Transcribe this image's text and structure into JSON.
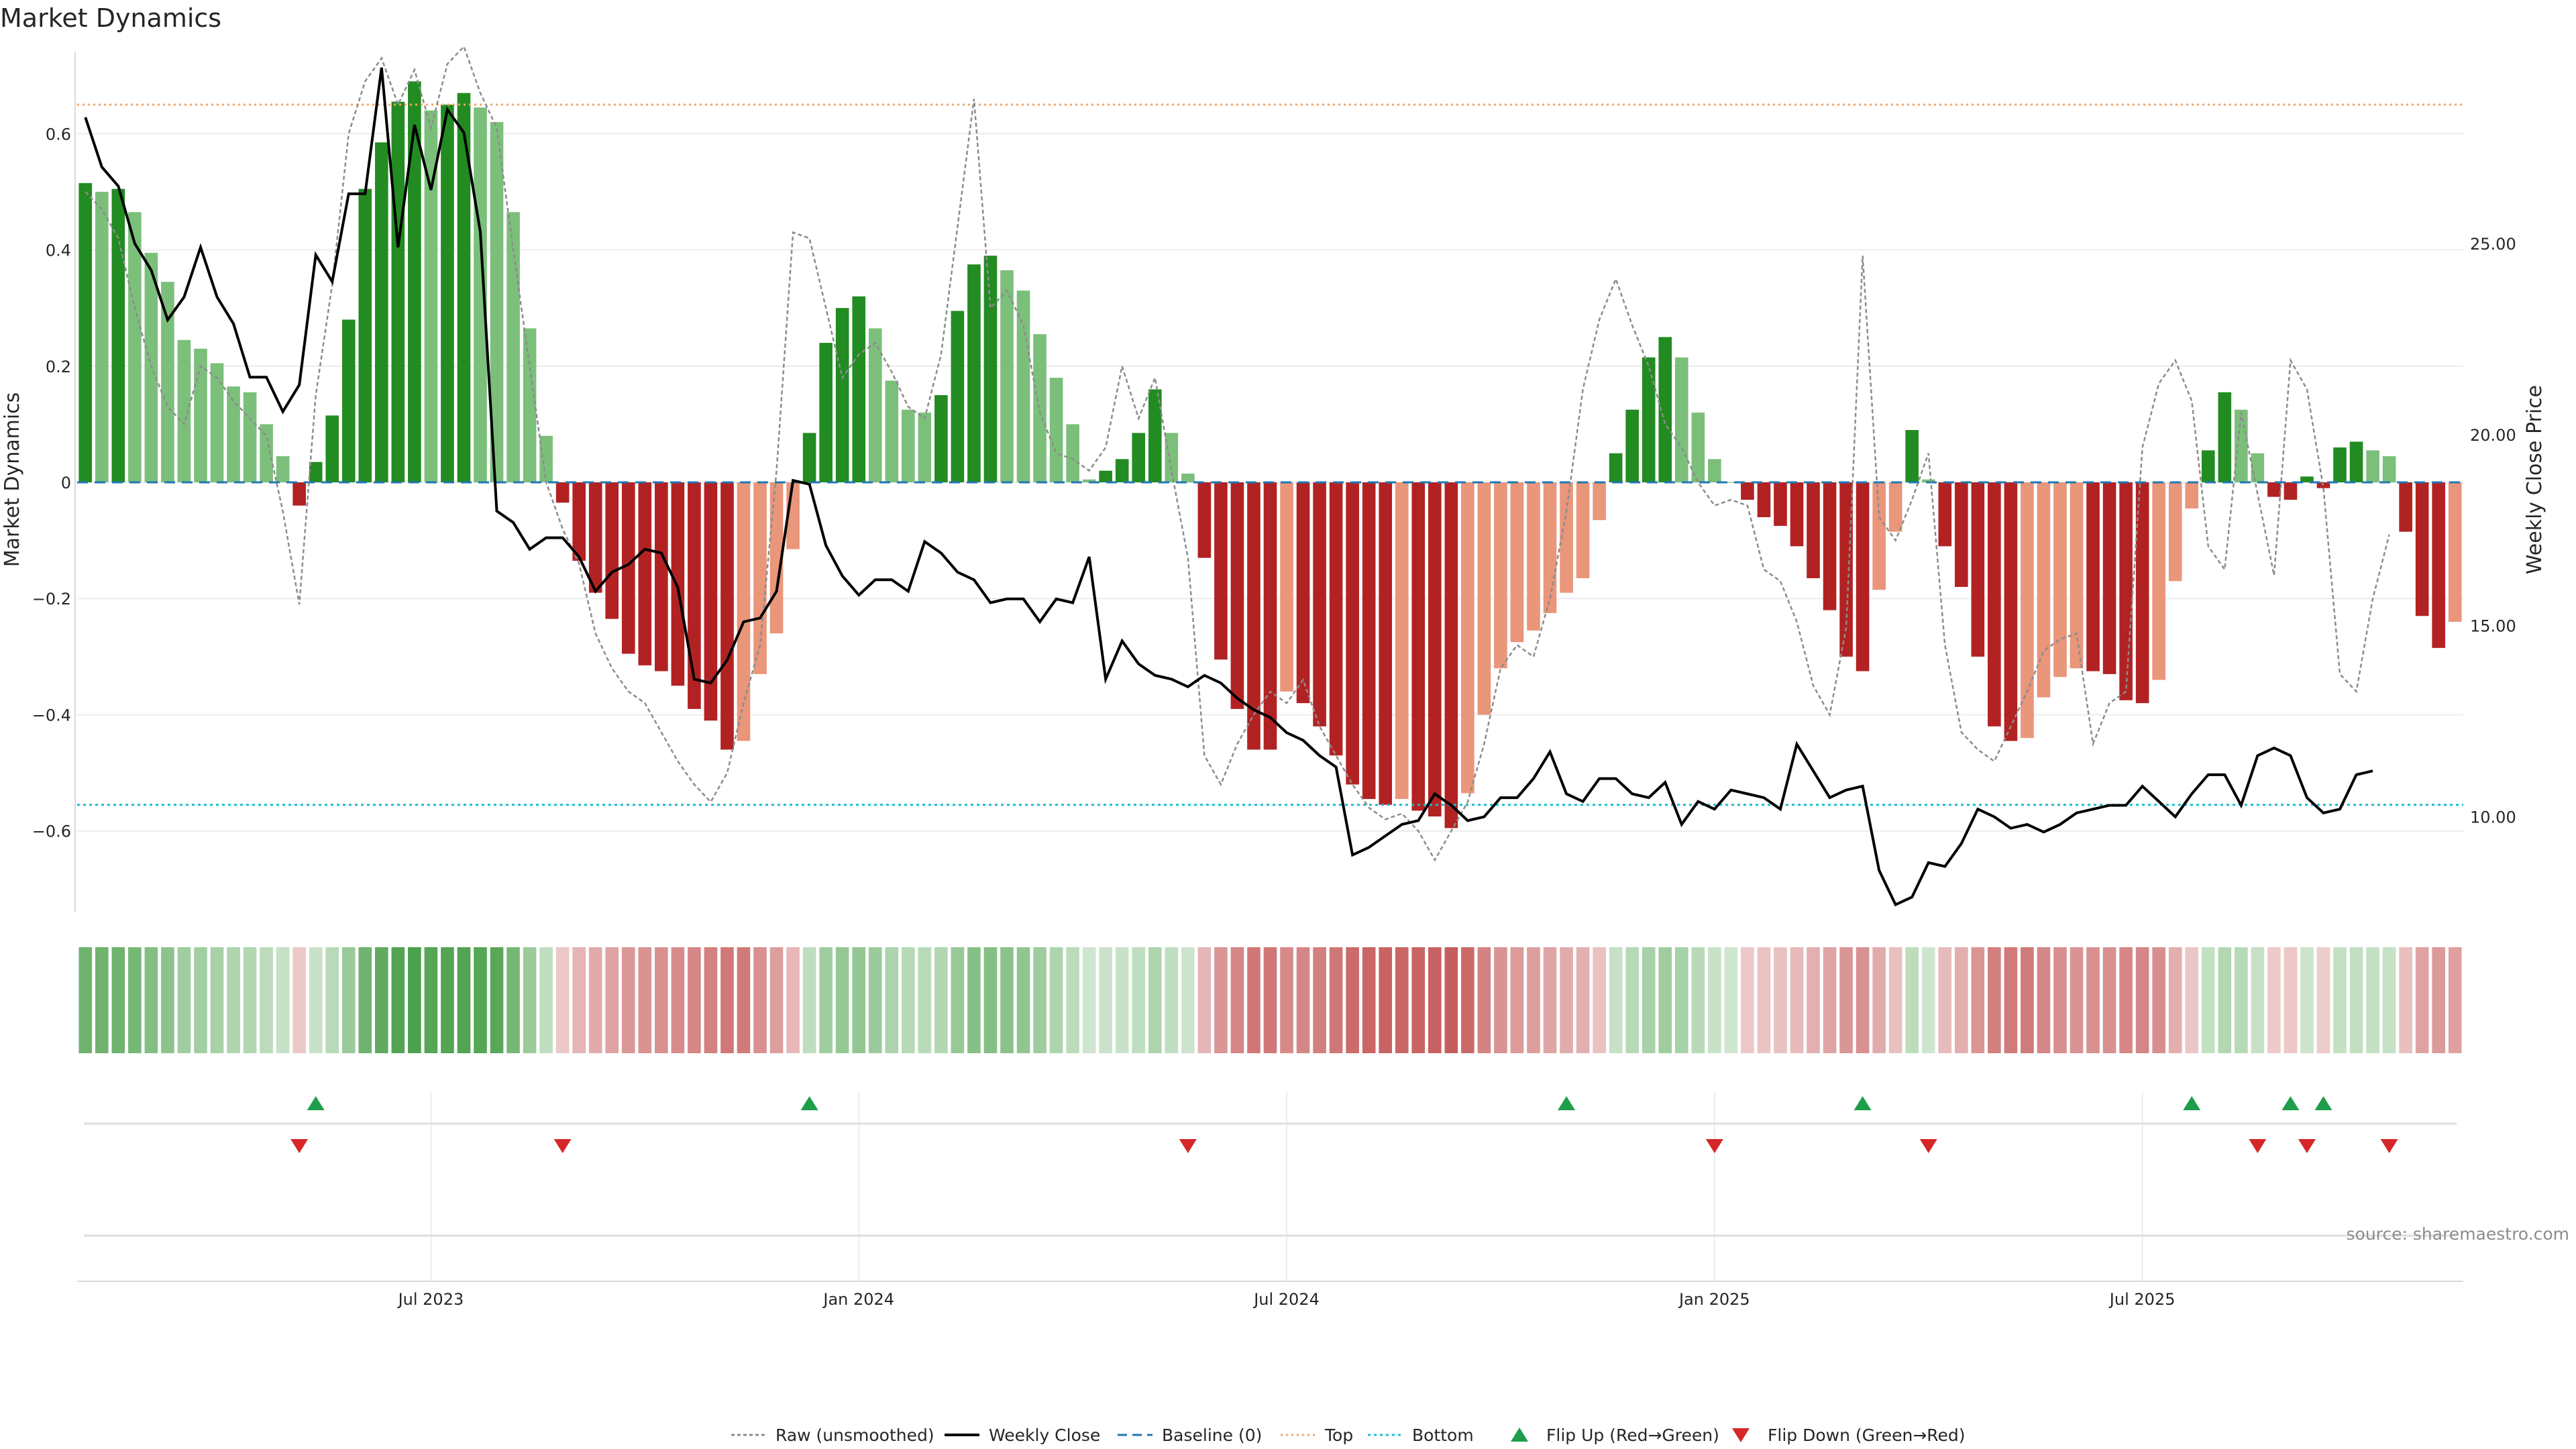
{
  "chart_data": {
    "type": "bar",
    "title": "Market Dynamics",
    "ylabel": "Market Dynamics",
    "ylabel_right": "Weekly Close Price",
    "ylim": [
      -0.74,
      0.74
    ],
    "ylim_right": [
      7.5,
      30
    ],
    "yticks": [
      {
        "v": 0.6,
        "label": "0.6"
      },
      {
        "v": 0.4,
        "label": "0.4"
      },
      {
        "v": 0.2,
        "label": "0.2"
      },
      {
        "v": 0,
        "label": "0"
      },
      {
        "v": -0.2,
        "label": "−0.2"
      },
      {
        "v": -0.4,
        "label": "−0.4"
      },
      {
        "v": -0.6,
        "label": "−0.6"
      }
    ],
    "yticks_right": [
      {
        "v": 25,
        "label": "25.00"
      },
      {
        "v": 20,
        "label": "20.00"
      },
      {
        "v": 15,
        "label": "15.00"
      },
      {
        "v": 10,
        "label": "10.00"
      }
    ],
    "xticks": [
      {
        "week": 21.5,
        "label": "Jul 2023"
      },
      {
        "week": 47.5,
        "label": "Jan 2024"
      },
      {
        "week": 73.5,
        "label": "Jul 2024"
      },
      {
        "week": 99.5,
        "label": "Jan 2025"
      },
      {
        "week": 125.5,
        "label": "Jul 2025"
      }
    ],
    "top_line": 0.65,
    "bottom_line": -0.555,
    "baseline": 0,
    "dynamics": [
      0.515,
      0.5,
      0.505,
      0.465,
      0.395,
      0.345,
      0.245,
      0.23,
      0.205,
      0.165,
      0.155,
      0.1,
      0.045,
      -0.04,
      0.035,
      0.115,
      0.28,
      0.505,
      0.585,
      0.655,
      0.69,
      0.64,
      0.65,
      0.67,
      0.645,
      0.62,
      0.465,
      0.265,
      0.08,
      -0.035,
      -0.135,
      -0.19,
      -0.235,
      -0.295,
      -0.315,
      -0.325,
      -0.35,
      -0.39,
      -0.41,
      -0.46,
      -0.445,
      -0.33,
      -0.26,
      -0.115,
      0.085,
      0.24,
      0.3,
      0.32,
      0.265,
      0.175,
      0.125,
      0.12,
      0.15,
      0.295,
      0.375,
      0.39,
      0.365,
      0.33,
      0.255,
      0.18,
      0.1,
      0.005,
      0.02,
      0.04,
      0.085,
      0.16,
      0.085,
      0.015,
      -0.13,
      -0.305,
      -0.39,
      -0.46,
      -0.46,
      -0.36,
      -0.38,
      -0.42,
      -0.47,
      -0.52,
      -0.545,
      -0.555,
      -0.545,
      -0.565,
      -0.575,
      -0.595,
      -0.535,
      -0.4,
      -0.32,
      -0.275,
      -0.255,
      -0.225,
      -0.19,
      -0.165,
      -0.065,
      0.05,
      0.125,
      0.215,
      0.25,
      0.215,
      0.12,
      0.04,
      0.0,
      -0.03,
      -0.06,
      -0.075,
      -0.11,
      -0.165,
      -0.22,
      -0.3,
      -0.325,
      -0.185,
      -0.085,
      0.09,
      0.005,
      -0.11,
      -0.18,
      -0.3,
      -0.42,
      -0.445,
      -0.44,
      -0.37,
      -0.335,
      -0.32,
      -0.325,
      -0.33,
      -0.375,
      -0.38,
      -0.34,
      -0.17,
      -0.045,
      0.055,
      0.155,
      0.125,
      0.05,
      -0.025,
      -0.03,
      0.01,
      -0.01,
      0.06,
      0.07,
      0.055,
      0.045,
      -0.085,
      -0.23,
      -0.285,
      -0.24
    ],
    "raw": [
      0.5,
      0.47,
      0.42,
      0.3,
      0.2,
      0.13,
      0.1,
      0.2,
      0.18,
      0.14,
      0.11,
      0.08,
      -0.05,
      -0.21,
      0.15,
      0.34,
      0.6,
      0.69,
      0.73,
      0.65,
      0.71,
      0.61,
      0.72,
      0.75,
      0.67,
      0.61,
      0.4,
      0.2,
      0.0,
      -0.08,
      -0.14,
      -0.26,
      -0.32,
      -0.36,
      -0.38,
      -0.43,
      -0.48,
      -0.52,
      -0.55,
      -0.5,
      -0.38,
      -0.28,
      0.02,
      0.43,
      0.42,
      0.3,
      0.18,
      0.22,
      0.24,
      0.19,
      0.13,
      0.11,
      0.22,
      0.44,
      0.66,
      0.3,
      0.33,
      0.27,
      0.12,
      0.05,
      0.04,
      0.02,
      0.06,
      0.2,
      0.11,
      0.18,
      0.02,
      -0.13,
      -0.47,
      -0.52,
      -0.45,
      -0.4,
      -0.36,
      -0.38,
      -0.34,
      -0.42,
      -0.47,
      -0.52,
      -0.56,
      -0.58,
      -0.57,
      -0.6,
      -0.65,
      -0.6,
      -0.55,
      -0.45,
      -0.32,
      -0.28,
      -0.3,
      -0.2,
      -0.05,
      0.16,
      0.28,
      0.35,
      0.27,
      0.2,
      0.1,
      0.06,
      0.0,
      -0.04,
      -0.03,
      -0.04,
      -0.15,
      -0.17,
      -0.24,
      -0.35,
      -0.4,
      -0.25,
      0.39,
      -0.06,
      -0.1,
      -0.03,
      0.05,
      -0.28,
      -0.43,
      -0.46,
      -0.48,
      -0.42,
      -0.36,
      -0.29,
      -0.27,
      -0.26,
      -0.45,
      -0.38,
      -0.36,
      0.06,
      0.17,
      0.21,
      0.14,
      -0.11,
      -0.15,
      0.12,
      -0.02,
      -0.16,
      0.21,
      0.16,
      -0.01,
      -0.33,
      -0.36,
      -0.2,
      -0.09
    ],
    "weekly_close": [
      28.3,
      27.0,
      26.5,
      25.0,
      24.3,
      23.0,
      23.6,
      24.9,
      23.6,
      22.9,
      21.5,
      21.5,
      20.6,
      21.3,
      24.7,
      24.0,
      26.3,
      26.3,
      29.6,
      24.9,
      28.1,
      26.4,
      28.5,
      27.9,
      25.3,
      18.0,
      17.7,
      17.0,
      17.3,
      17.3,
      16.8,
      15.9,
      16.4,
      16.6,
      17.0,
      16.9,
      16.0,
      13.6,
      13.5,
      14.1,
      15.1,
      15.2,
      15.9,
      18.8,
      18.7,
      17.1,
      16.3,
      15.8,
      16.2,
      16.2,
      15.9,
      17.2,
      16.9,
      16.4,
      16.2,
      15.6,
      15.7,
      15.7,
      15.1,
      15.7,
      15.6,
      16.8,
      13.6,
      14.6,
      14.0,
      13.7,
      13.6,
      13.4,
      13.7,
      13.5,
      13.1,
      12.8,
      12.6,
      12.2,
      12.0,
      11.6,
      11.3,
      9.0,
      9.2,
      9.5,
      9.8,
      9.9,
      10.6,
      10.3,
      9.9,
      10.0,
      10.5,
      10.5,
      11.0,
      11.7,
      10.6,
      10.4,
      11.0,
      11.0,
      10.6,
      10.5,
      10.9,
      9.8,
      10.4,
      10.2,
      10.7,
      10.6,
      10.5,
      10.2,
      11.9,
      11.2,
      10.5,
      10.7,
      10.8,
      8.6,
      7.7,
      7.9,
      8.8,
      8.7,
      9.3,
      10.2,
      10.0,
      9.7,
      9.8,
      9.6,
      9.8,
      10.1,
      10.2,
      10.3,
      10.3,
      10.8,
      10.4,
      10.0,
      10.6,
      11.1,
      11.1,
      10.3,
      11.6,
      11.8,
      11.6,
      10.5,
      10.1,
      10.2,
      11.1,
      11.2
    ],
    "flip_up_weeks": [
      14,
      44,
      90,
      108,
      128,
      134,
      136
    ],
    "flip_down_weeks": [
      13,
      29,
      67,
      99,
      112,
      132,
      135,
      140
    ],
    "colors": {
      "dark_green": "#228b22",
      "light_green": "#7bbf7b",
      "dark_red": "#b22222",
      "light_red": "#e9967a",
      "flip_up": "#1e9e4b",
      "flip_down": "#d62728",
      "raw_line": "#8c8c8c",
      "close_line": "#000000",
      "baseline": "#1f77b4",
      "top": "#f4a460",
      "bottom": "#17becf"
    },
    "source": "source: sharemaestro.com",
    "legend": [
      {
        "key": "raw",
        "label": "Raw (unsmoothed)"
      },
      {
        "key": "close",
        "label": "Weekly Close"
      },
      {
        "key": "baseline",
        "label": "Baseline (0)"
      },
      {
        "key": "top",
        "label": "Top"
      },
      {
        "key": "bottom",
        "label": "Bottom"
      },
      {
        "key": "up",
        "label": "Flip Up (Red→Green)"
      },
      {
        "key": "down",
        "label": "Flip Down (Green→Red)"
      }
    ]
  }
}
